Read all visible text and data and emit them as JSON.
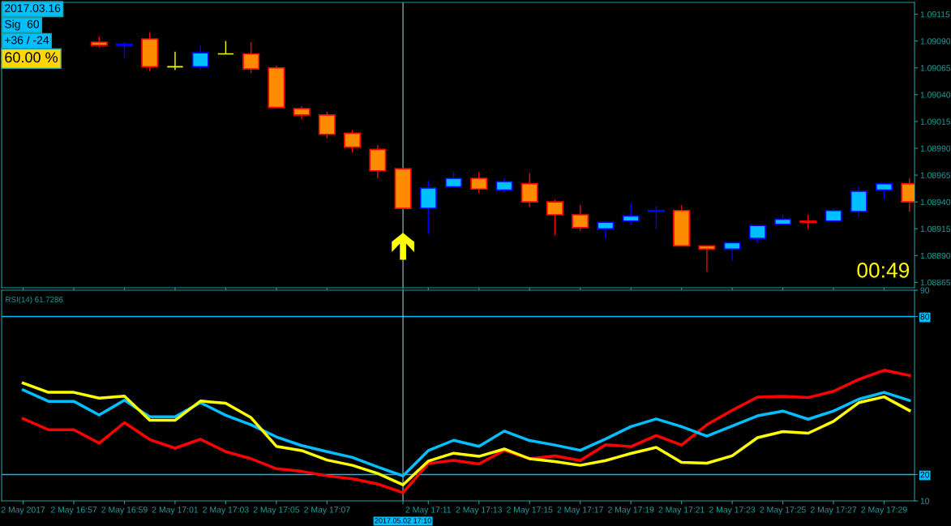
{
  "chart_data": [
    {
      "type": "candlestick",
      "annotations": [
        "2017.03.16",
        "Sig  60",
        "+36 / -24",
        "60.00 %",
        "00:49"
      ],
      "categories": [
        "2 May 2017",
        null,
        "2 May 16:57",
        null,
        "2 May 16:59",
        null,
        "2 May 17:01",
        null,
        "2 May 17:03",
        null,
        "2 May 17:05",
        null,
        "2 May 17:07",
        null,
        null,
        "2017.05.02 17:10",
        "2 May 17:11",
        null,
        "2 May 17:13",
        null,
        "2 May 17:15",
        null,
        "2 May 17:17",
        null,
        "2 May 17:19",
        null,
        "2 May 17:21",
        null,
        "2 May 17:23",
        null,
        "2 May 17:25",
        null,
        "2 May 17:27",
        null,
        "2 May 17:29",
        null
      ],
      "ohlc": [
        null,
        null,
        null,
        [
          1.09089,
          1.09094,
          1.09084,
          1.09086
        ],
        [
          1.09086,
          1.09089,
          1.09074,
          1.09087
        ],
        [
          1.09092,
          1.09098,
          1.09062,
          1.09066
        ],
        [
          1.09066,
          1.0908,
          1.09063,
          1.09066
        ],
        [
          1.09066,
          1.09086,
          1.09063,
          1.09079
        ],
        [
          1.09078,
          1.0909,
          1.09078,
          1.09078
        ],
        [
          1.09078,
          1.09089,
          1.0906,
          1.09064
        ],
        [
          1.09065,
          1.09067,
          1.09028,
          1.09028
        ],
        [
          1.09027,
          1.09029,
          1.09017,
          1.09021
        ],
        [
          1.09021,
          1.09024,
          1.08999,
          1.09003
        ],
        [
          1.09004,
          1.09007,
          1.08986,
          1.08991
        ],
        [
          1.08989,
          1.08993,
          1.08962,
          1.08969
        ],
        [
          1.08971,
          1.08971,
          1.08934,
          1.08934
        ],
        [
          1.08934,
          1.0896,
          1.0891,
          1.08953
        ],
        [
          1.08954,
          1.08968,
          1.08954,
          1.08962
        ],
        [
          1.08962,
          1.08968,
          1.08948,
          1.08952
        ],
        [
          1.08951,
          1.08962,
          1.08949,
          1.08959
        ],
        [
          1.08957,
          1.08967,
          1.08935,
          1.0894
        ],
        [
          1.0894,
          1.08942,
          1.08909,
          1.08928
        ],
        [
          1.08928,
          1.08937,
          1.08913,
          1.08916
        ],
        [
          1.08915,
          1.08922,
          1.08906,
          1.08921
        ],
        [
          1.08922,
          1.08939,
          1.08919,
          1.08927
        ],
        [
          1.08931,
          1.08936,
          1.08915,
          1.08932
        ],
        [
          1.08932,
          1.08937,
          1.08899,
          1.08899
        ],
        [
          1.08899,
          1.08899,
          1.08875,
          1.08896
        ],
        [
          1.08896,
          1.08902,
          1.08885,
          1.08902
        ],
        [
          1.08906,
          1.08918,
          1.08902,
          1.08918
        ],
        [
          1.08919,
          1.08928,
          1.08918,
          1.08924
        ],
        [
          1.08922,
          1.08928,
          1.08915,
          1.08921
        ],
        [
          1.08922,
          1.08934,
          1.08922,
          1.08932
        ],
        [
          1.08931,
          1.08954,
          1.08926,
          1.0895
        ],
        [
          1.08951,
          1.08957,
          1.08943,
          1.08957
        ],
        [
          1.08957,
          1.08962,
          1.08931,
          1.0894
        ]
      ],
      "colors": [
        null,
        null,
        null,
        "#ff8c00",
        "#0000ff",
        "#ff8c00",
        "#ffff00",
        "#00bfff",
        "#ffff00",
        "#ff8c00",
        "#ff8c00",
        "#ff8c00",
        "#ff8c00",
        "#ff8c00",
        "#ff8c00",
        "#ff8c00",
        "#00bfff",
        "#00bfff",
        "#ff8c00",
        "#00bfff",
        "#ff8c00",
        "#ff8c00",
        "#ff8c00",
        "#00bfff",
        "#00bfff",
        "#00bfff",
        "#ff8c00",
        "#ff8c00",
        "#00bfff",
        "#00bfff",
        "#00bfff",
        "#ff0000",
        "#00bfff",
        "#00bfff",
        "#00bfff",
        "#ff8c00"
      ],
      "ylim": [
        1.0886,
        1.09126
      ],
      "yticks": [
        {
          "value": 1.09115,
          "label": "1.09115"
        },
        {
          "value": 1.0909,
          "label": "1.09090"
        },
        {
          "value": 1.09065,
          "label": "1.09065"
        },
        {
          "value": 1.0904,
          "label": "1.09040"
        },
        {
          "value": 1.09015,
          "label": "1.09015"
        },
        {
          "value": 1.0899,
          "label": "1.08990"
        },
        {
          "value": 1.08965,
          "label": "1.08965"
        },
        {
          "value": 1.0894,
          "label": "1.08940"
        },
        {
          "value": 1.08915,
          "label": "1.08915"
        },
        {
          "value": 1.0889,
          "label": "1.08890"
        },
        {
          "value": 1.08865,
          "label": "1.08865"
        }
      ],
      "ref_lines": [
        {
          "axis": "x",
          "value": "2017.05.02 17:10",
          "color": "#b0c4c4"
        }
      ],
      "tick_labels": "y"
    },
    {
      "type": "line",
      "title": "RSI(14) 61.7286",
      "line_style": "solid",
      "marker": "none",
      "categories": [
        "2 May 2017",
        null,
        "2 May 16:57",
        null,
        "2 May 16:59",
        null,
        "2 May 17:01",
        null,
        "2 May 17:03",
        null,
        "2 May 17:05",
        null,
        "2 May 17:07",
        null,
        null,
        "2017.05.02 17:10",
        "2 May 17:11",
        null,
        "2 May 17:13",
        null,
        "2 May 17:15",
        null,
        "2 May 17:17",
        null,
        "2 May 17:19",
        null,
        "2 May 17:21",
        null,
        "2 May 17:23",
        null,
        "2 May 17:25",
        null,
        "2 May 17:27",
        null,
        "2 May 17:29",
        null
      ],
      "series": [
        {
          "color": "#ff0000",
          "values": [
            41.2,
            37.0,
            37.0,
            31.9,
            39.7,
            33.3,
            30.0,
            33.4,
            28.7,
            26.0,
            22.2,
            21.2,
            19.5,
            18.4,
            16.4,
            13.1,
            24.2,
            25.4,
            24.0,
            29.2,
            26.0,
            27.1,
            25.3,
            31.3,
            30.6,
            34.8,
            31.2,
            38.9,
            44.4,
            49.4,
            49.7,
            49.2,
            51.6,
            56.1,
            59.6,
            57.6
          ]
        },
        {
          "color": "#00bfff",
          "values": [
            52.1,
            47.8,
            47.8,
            42.6,
            48.2,
            41.9,
            41.9,
            47.3,
            42.5,
            38.9,
            34.3,
            31.0,
            28.7,
            26.5,
            22.9,
            19.5,
            29.1,
            33.0,
            30.7,
            36.5,
            32.9,
            31.2,
            29.2,
            33.5,
            38.2,
            41.1,
            38.2,
            34.6,
            38.4,
            42.3,
            44.1,
            41.0,
            44.1,
            48.6,
            51.2,
            48.1
          ]
        },
        {
          "color": "#ffff00",
          "values": [
            54.7,
            51.2,
            51.2,
            49.0,
            49.8,
            40.6,
            40.6,
            47.9,
            47.1,
            41.6,
            30.7,
            29.1,
            25.5,
            23.5,
            20.4,
            16.1,
            25.1,
            28.1,
            26.9,
            29.7,
            26.0,
            24.9,
            23.5,
            25.3,
            28.0,
            30.3,
            24.6,
            24.3,
            27.1,
            34.0,
            36.3,
            35.7,
            40.2,
            47.3,
            49.5,
            44.3
          ]
        }
      ],
      "ylim": [
        10,
        90
      ],
      "yticks": [
        10,
        20,
        80,
        90
      ],
      "ref_lines": [
        {
          "axis": "y",
          "value": 80,
          "color": "#00bfff"
        },
        {
          "axis": "y",
          "value": 20,
          "color": "#00bfff"
        },
        {
          "axis": "x",
          "value": "2017.05.02 17:10",
          "color": "#b0c4c4"
        }
      ]
    }
  ]
}
